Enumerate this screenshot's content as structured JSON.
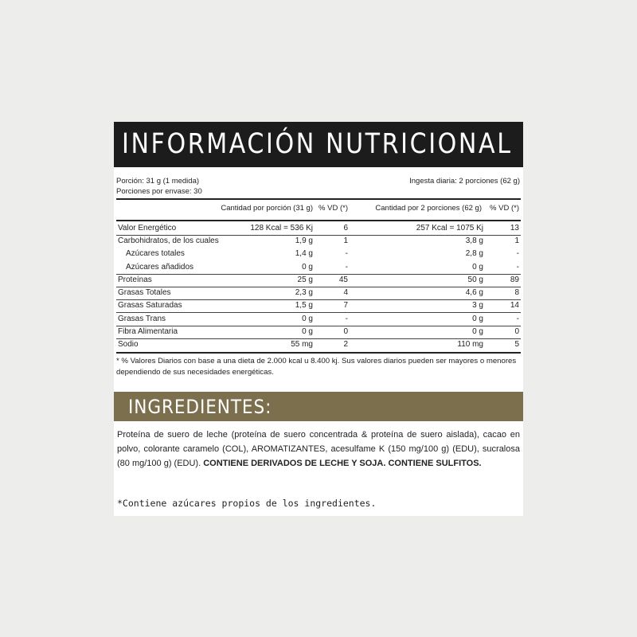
{
  "title": "INFORMACIÓN NUTRICIONAL",
  "portion": "Porción: 31 g (1 medida)",
  "portions_per_pack": "Porciones por envase: 30",
  "daily_intake": "Ingesta diaria: 2 porciones (62 g)",
  "columns": [
    "",
    "Cantidad por porción (31 g)",
    "% VD (*)",
    "Cantidad por 2 porciones (62 g)",
    "% VD (*)"
  ],
  "rows": [
    {
      "name": "Valor Energético",
      "per_portion": "128 Kcal = 536 Kj",
      "vd1": "6",
      "per_two": "257 Kcal = 1075 Kj",
      "vd2": "13"
    },
    {
      "name": "Carbohidratos, de los cuales",
      "per_portion": "1,9 g",
      "vd1": "1",
      "per_two": "3,8 g",
      "vd2": "1"
    },
    {
      "name": "Azúcares totales",
      "per_portion": "1,4 g",
      "vd1": "-",
      "per_two": "2,8 g",
      "vd2": "-"
    },
    {
      "name": "Azúcares añadidos",
      "per_portion": "0 g",
      "vd1": "-",
      "per_two": "0 g",
      "vd2": "-"
    },
    {
      "name": "Proteínas",
      "per_portion": "25 g",
      "vd1": "45",
      "per_two": "50 g",
      "vd2": "89"
    },
    {
      "name": "Grasas Totales",
      "per_portion": "2,3 g",
      "vd1": "4",
      "per_two": "4,6 g",
      "vd2": "8"
    },
    {
      "name": "Grasas Saturadas",
      "per_portion": "1,5 g",
      "vd1": "7",
      "per_two": "3 g",
      "vd2": "14"
    },
    {
      "name": "Grasas Trans",
      "per_portion": "0 g",
      "vd1": "-",
      "per_two": "0 g",
      "vd2": "-"
    },
    {
      "name": "Fibra Alimentaria",
      "per_portion": "0 g",
      "vd1": "0",
      "per_two": "0 g",
      "vd2": "0"
    },
    {
      "name": "Sodio",
      "per_portion": "55 mg",
      "vd1": "2",
      "per_two": "110 mg",
      "vd2": "5"
    }
  ],
  "footnote": "* % Valores Diarios con base a una dieta de 2.000 kcal u 8.400 kj. Sus valores diarios pueden ser mayores o menores dependiendo de sus necesidades energéticas.",
  "ingredients_title": "INGREDIENTES:",
  "ingredients_text": "Proteína de suero de leche (proteína de suero concentrada & proteína de suero aislada), cacao en polvo, colorante caramelo (COL), AROMATIZANTES, acesulfame K (150 mg/100 g) (EDU), sucralosa (80 mg/100 g) (EDU). ",
  "allergens": "CONTIENE DERIVADOS DE LECHE Y SOJA. CONTIENE SULFITOS.",
  "sugar_note": "*Contiene azúcares propios de los ingredientes.",
  "colors": {
    "title_bar": "#1c1c1c",
    "ingredients_bar": "#7c6f4e",
    "background": "#ededeb"
  }
}
